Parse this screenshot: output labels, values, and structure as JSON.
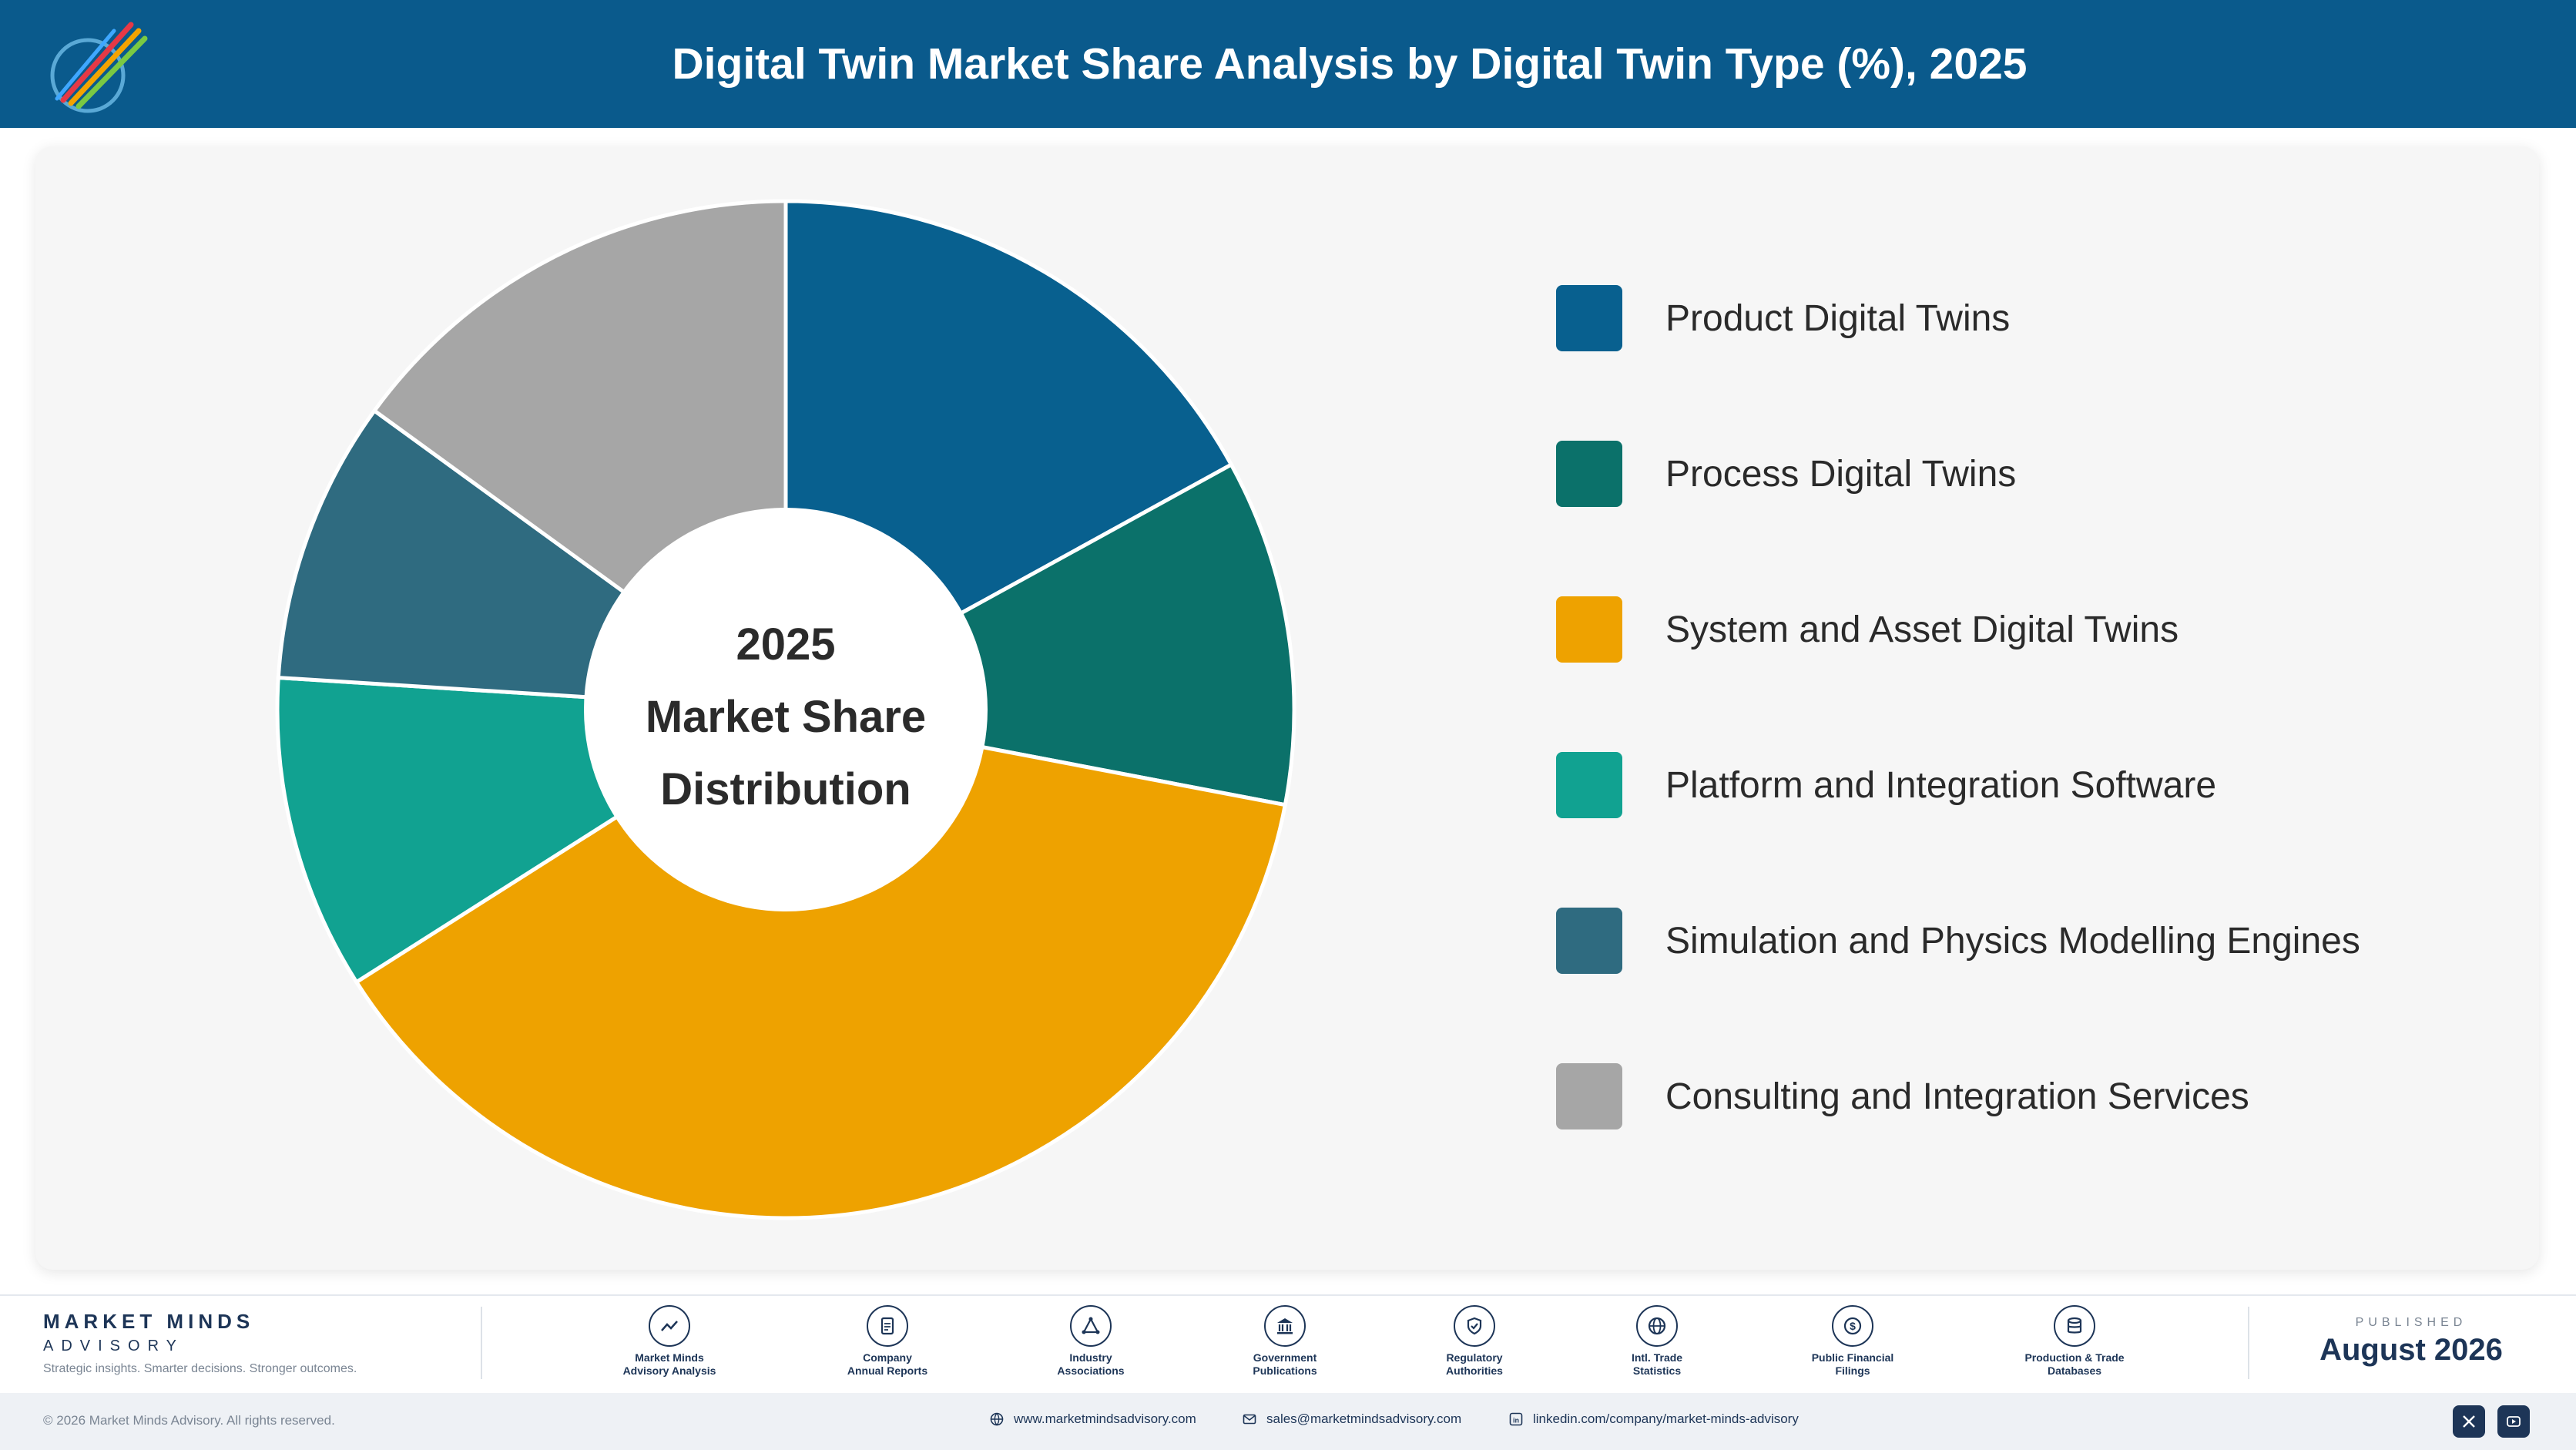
{
  "header": {
    "title": "Digital Twin Market Share Analysis by Digital Twin Type (%), 2025"
  },
  "chart_data": {
    "type": "pie",
    "variant": "donut",
    "center_text": [
      "2025",
      "Market Share",
      "Distribution"
    ],
    "legend_position": "right",
    "categories": [
      "Product Digital Twins",
      "Process Digital Twins",
      "System and Asset Digital Twins",
      "Platform and Integration Software",
      "Simulation and Physics Modelling Engines",
      "Consulting and Integration Services"
    ],
    "values": [
      17,
      11,
      38,
      10,
      9,
      15
    ],
    "colors": [
      "#08608f",
      "#0b716a",
      "#eea200",
      "#11a291",
      "#2f6b80",
      "#a6a6a6"
    ]
  },
  "footer": {
    "brand_name": "MARKET MINDS",
    "brand_sub": "ADVISORY",
    "tagline": "Strategic insights. Smarter decisions. Stronger outcomes.",
    "sources": [
      {
        "line1": "Market Minds",
        "line2": "Advisory Analysis",
        "icon": "trend-chart-icon"
      },
      {
        "line1": "Company",
        "line2": "Annual Reports",
        "icon": "document-icon"
      },
      {
        "line1": "Industry",
        "line2": "Associations",
        "icon": "network-icon"
      },
      {
        "line1": "Government",
        "line2": "Publications",
        "icon": "government-building-icon"
      },
      {
        "line1": "Regulatory",
        "line2": "Authorities",
        "icon": "shield-check-icon"
      },
      {
        "line1": "Intl. Trade",
        "line2": "Statistics",
        "icon": "globe-icon"
      },
      {
        "line1": "Public Financial",
        "line2": "Filings",
        "icon": "dollar-coin-icon"
      },
      {
        "line1": "Production & Trade",
        "line2": "Databases",
        "icon": "database-icon"
      }
    ],
    "published_label": "PUBLISHED",
    "published_date": "August 2026",
    "copyright": "© 2026 Market Minds Advisory. All rights reserved.",
    "website": "www.marketmindsadvisory.com",
    "email": "sales@marketmindsadvisory.com",
    "linkedin": "linkedin.com/company/market-minds-advisory"
  }
}
